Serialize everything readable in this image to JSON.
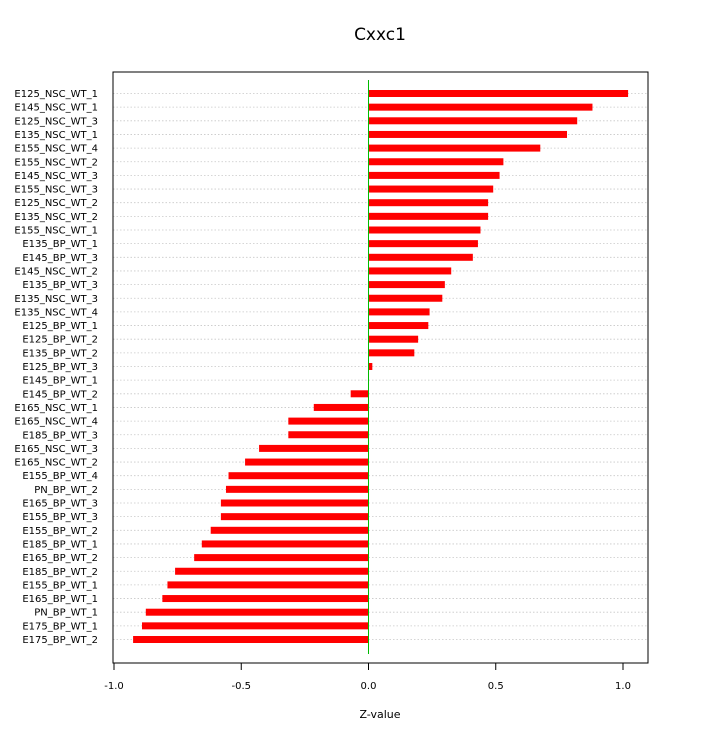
{
  "chart_data": {
    "type": "bar",
    "orientation": "horizontal",
    "title": "Cxxc1",
    "xlabel": "Z-value",
    "ylabel": "",
    "xlim": [
      -1.0,
      1.0
    ],
    "xticks": [
      "-1.0",
      "-0.5",
      "0.0",
      "0.5",
      "1.0"
    ],
    "grid": "horizontal dotted",
    "colors": {
      "bar": "#ff0000",
      "zero_line": "#00bb00"
    },
    "categories": [
      "E125_NSC_WT_1",
      "E145_NSC_WT_1",
      "E125_NSC_WT_3",
      "E135_NSC_WT_1",
      "E155_NSC_WT_4",
      "E155_NSC_WT_2",
      "E145_NSC_WT_3",
      "E155_NSC_WT_3",
      "E125_NSC_WT_2",
      "E135_NSC_WT_2",
      "E155_NSC_WT_1",
      "E135_BP_WT_1",
      "E145_BP_WT_3",
      "E145_NSC_WT_2",
      "E135_BP_WT_3",
      "E135_NSC_WT_3",
      "E135_NSC_WT_4",
      "E125_BP_WT_1",
      "E125_BP_WT_2",
      "E135_BP_WT_2",
      "E125_BP_WT_3",
      "E145_BP_WT_1",
      "E145_BP_WT_2",
      "E165_NSC_WT_1",
      "E165_NSC_WT_4",
      "E185_BP_WT_3",
      "E165_NSC_WT_3",
      "E165_NSC_WT_2",
      "E155_BP_WT_4",
      "PN_BP_WT_2",
      "E165_BP_WT_3",
      "E155_BP_WT_3",
      "E155_BP_WT_2",
      "E185_BP_WT_1",
      "E165_BP_WT_2",
      "E185_BP_WT_2",
      "E155_BP_WT_1",
      "E165_BP_WT_1",
      "PN_BP_WT_1",
      "E175_BP_WT_1",
      "E175_BP_WT_2"
    ],
    "values": [
      1.02,
      0.88,
      0.82,
      0.78,
      0.675,
      0.53,
      0.515,
      0.49,
      0.47,
      0.47,
      0.44,
      0.43,
      0.41,
      0.325,
      0.3,
      0.29,
      0.24,
      0.235,
      0.195,
      0.18,
      0.015,
      0.0,
      -0.07,
      -0.215,
      -0.315,
      -0.315,
      -0.43,
      -0.485,
      -0.55,
      -0.56,
      -0.58,
      -0.58,
      -0.62,
      -0.655,
      -0.685,
      -0.76,
      -0.79,
      -0.81,
      -0.875,
      -0.89,
      -0.925
    ]
  }
}
